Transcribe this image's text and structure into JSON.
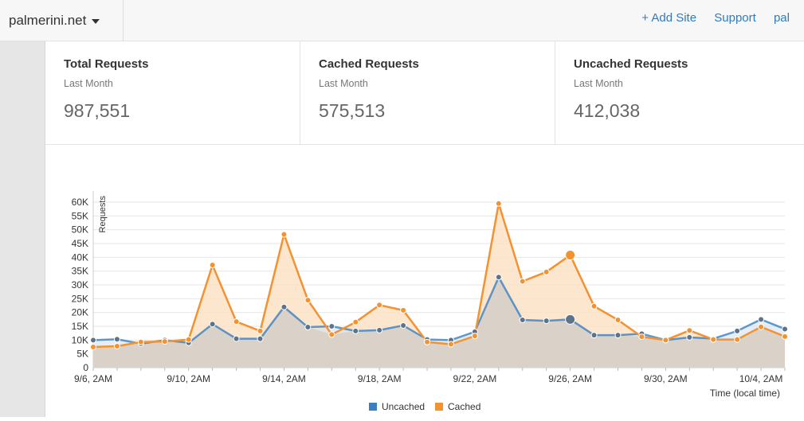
{
  "header": {
    "site_name": "palmerini.net",
    "nav": {
      "add_site": "+ Add Site",
      "support": "Support",
      "account": "pal"
    }
  },
  "stats": [
    {
      "title": "Total Requests",
      "period": "Last Month",
      "value": "987,551"
    },
    {
      "title": "Cached Requests",
      "period": "Last Month",
      "value": "575,513"
    },
    {
      "title": "Uncached Requests",
      "period": "Last Month",
      "value": "412,038"
    }
  ],
  "chart_data": {
    "type": "area",
    "ylabel": "Requests",
    "xlabel": "Time (local time)",
    "ylim": [
      0,
      60000
    ],
    "ytick_labels": [
      "0",
      "5K",
      "10K",
      "15K",
      "20K",
      "25K",
      "30K",
      "35K",
      "40K",
      "45K",
      "50K",
      "55K",
      "60K"
    ],
    "x": [
      "9/6, 2AM",
      "9/7, 2AM",
      "9/8, 2AM",
      "9/9, 2AM",
      "9/10, 2AM",
      "9/11, 2AM",
      "9/12, 2AM",
      "9/13, 2AM",
      "9/14, 2AM",
      "9/15, 2AM",
      "9/16, 2AM",
      "9/17, 2AM",
      "9/18, 2AM",
      "9/19, 2AM",
      "9/20, 2AM",
      "9/21, 2AM",
      "9/22, 2AM",
      "9/23, 2AM",
      "9/24, 2AM",
      "9/25, 2AM",
      "9/26, 2AM",
      "9/27, 2AM",
      "9/28, 2AM",
      "9/29, 2AM",
      "9/30, 2AM",
      "10/1, 2AM",
      "10/2, 2AM",
      "10/3, 2AM",
      "10/4, 2AM",
      "10/5, 2AM"
    ],
    "xtick_labels": [
      "9/6, 2AM",
      "9/10, 2AM",
      "9/14, 2AM",
      "9/18, 2AM",
      "9/22, 2AM",
      "9/26, 2AM",
      "9/30, 2AM",
      "10/4, 2AM"
    ],
    "series": [
      {
        "name": "Uncached",
        "color": "#3a7fc1",
        "values": [
          10000,
          10300,
          8700,
          10000,
          9000,
          15800,
          10500,
          10500,
          22000,
          14700,
          15000,
          13300,
          13600,
          15300,
          10200,
          10000,
          13000,
          32800,
          17300,
          17000,
          17500,
          11800,
          11800,
          12300,
          10000,
          11000,
          10500,
          13300,
          17500,
          14000
        ]
      },
      {
        "name": "Cached",
        "color": "#f39230",
        "values": [
          7500,
          7800,
          9300,
          9500,
          10200,
          37200,
          16700,
          13300,
          48300,
          24500,
          12000,
          16500,
          22700,
          20800,
          9300,
          8500,
          11500,
          59500,
          31300,
          34700,
          40800,
          22300,
          17300,
          11200,
          10000,
          13500,
          10200,
          10200,
          14800,
          11300
        ]
      }
    ],
    "highlight_index": 20,
    "grid": true,
    "legend": "bottom-center"
  },
  "colors": {
    "uncached": "#3a7fc1",
    "cached": "#f39230",
    "cached_fill": "#fde2c6",
    "overlap_fill": "#d8cfc6",
    "link": "#2f7bbf"
  }
}
